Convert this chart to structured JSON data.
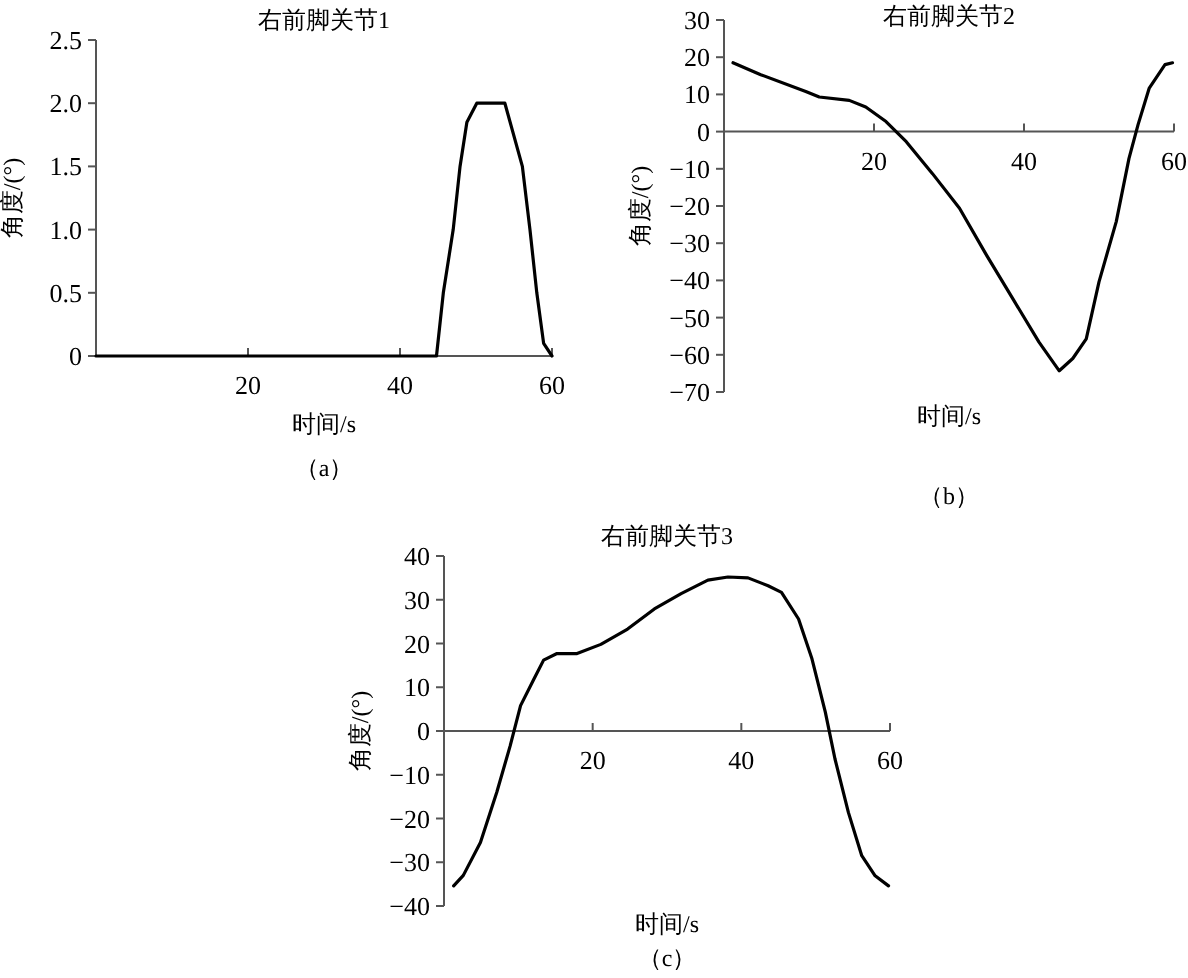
{
  "chart_data": [
    {
      "type": "line",
      "title": "右前脚关节1",
      "xlabel": "时间/s",
      "ylabel": "角度/(°)",
      "annotations": [
        "（a）"
      ],
      "xlim": [
        0,
        60
      ],
      "ylim": [
        0,
        2.5
      ],
      "xticks": [
        20,
        40,
        60
      ],
      "yticks": [
        0,
        {
          "value": 0.5,
          "label": "0.5"
        },
        {
          "value": 1,
          "label": "1.0"
        },
        {
          "value": 1.5,
          "label": "1.5"
        },
        {
          "value": 2,
          "label": "2.0"
        },
        {
          "value": 2.5,
          "label": "2.5"
        }
      ],
      "x": [
        0,
        44.8,
        45.7,
        47.0,
        47.9,
        48.8,
        50.1,
        53.8,
        56.1,
        57.1,
        58.0,
        58.9,
        60
      ],
      "series": [
        {
          "color": "#000000",
          "values": [
            0,
            0,
            0.5,
            1.0,
            1.5,
            1.85,
            2.0,
            2.0,
            1.5,
            1.0,
            0.5,
            0.1,
            0
          ]
        }
      ]
    },
    {
      "type": "line",
      "title": "右前脚关节2",
      "xlabel": "时间/s",
      "ylabel": "角度/(°)",
      "annotations": [
        "（b）"
      ],
      "xlim": [
        0,
        60
      ],
      "ylim": [
        -70,
        30
      ],
      "xticks": [
        20,
        40,
        60
      ],
      "yticks": [
        -70,
        -60,
        -50,
        -40,
        -30,
        -20,
        -10,
        0,
        10,
        20,
        30
      ],
      "x": [
        1.2,
        4.9,
        10.9,
        12.7,
        16.7,
        18.9,
        21.6,
        24.3,
        27.8,
        31.4,
        35,
        38.5,
        42,
        44.7,
        46.5,
        48.3,
        50,
        52.3,
        54,
        55.2,
        56.7,
        58.8,
        59.8
      ],
      "series": [
        {
          "color": "#000000",
          "values": [
            18.5,
            15.3,
            10.8,
            9.3,
            8.4,
            6.6,
            2.7,
            -2.7,
            -11.3,
            -20.6,
            -33.2,
            -44.9,
            -56.6,
            -64.3,
            -61,
            -55.7,
            -40.4,
            -24.2,
            -7.2,
            1.8,
            11.7,
            18,
            18.5
          ]
        }
      ]
    },
    {
      "type": "line",
      "title": "右前脚关节3",
      "xlabel": "时间/s",
      "ylabel": "角度/(°)",
      "annotations": [
        "（c）"
      ],
      "xlim": [
        0,
        60
      ],
      "ylim": [
        -40,
        40
      ],
      "xticks": [
        20,
        40,
        60
      ],
      "yticks": [
        -40,
        -30,
        -20,
        -10,
        0,
        10,
        20,
        30,
        40
      ],
      "x": [
        1.3,
        2.6,
        4.9,
        7.1,
        8.9,
        10.3,
        12.1,
        13.4,
        15.2,
        17.9,
        21.1,
        24.7,
        28.3,
        31.9,
        35.5,
        38.2,
        40.9,
        43.6,
        45.4,
        47.7,
        49.5,
        51.3,
        52.6,
        54.4,
        56.2,
        58,
        59.8
      ],
      "series": [
        {
          "color": "#000000",
          "values": [
            -35.4,
            -33,
            -25.5,
            -14,
            -3.4,
            5.8,
            11.9,
            16.2,
            17.7,
            17.7,
            19.8,
            23.3,
            27.9,
            31.4,
            34.5,
            35.2,
            35,
            33.2,
            31.7,
            25.6,
            16.5,
            4.3,
            -6.4,
            -18.6,
            -28.5,
            -33.1,
            -35.4
          ]
        }
      ]
    }
  ]
}
